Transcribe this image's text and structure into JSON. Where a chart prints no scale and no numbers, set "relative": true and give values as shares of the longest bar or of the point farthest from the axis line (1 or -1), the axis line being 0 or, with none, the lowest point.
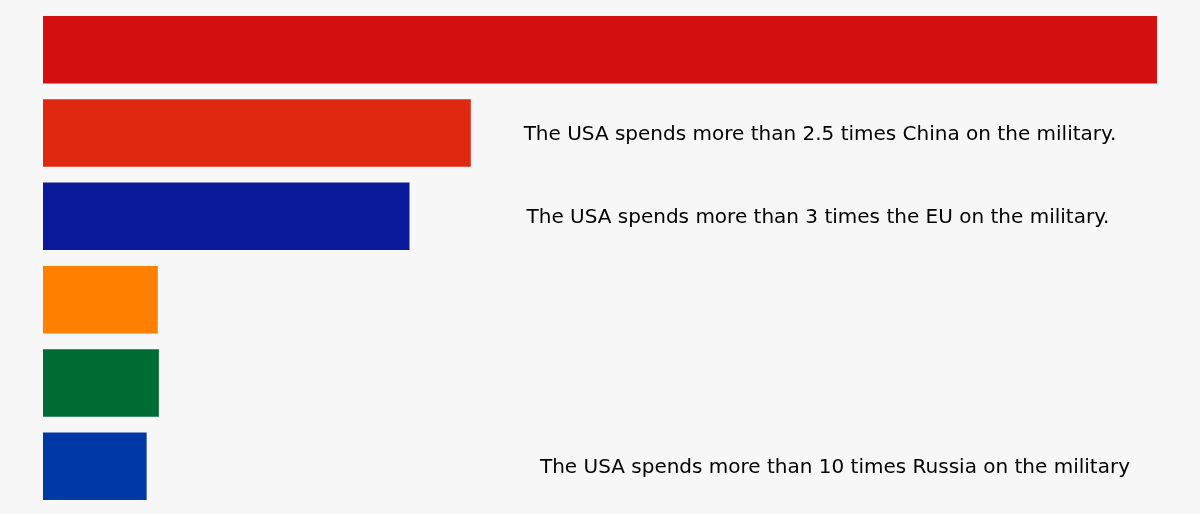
{
  "chart_data": {
    "type": "bar",
    "orientation": "horizontal",
    "relative": true,
    "categories": [
      null,
      null,
      null,
      null,
      null,
      null
    ],
    "values": [
      1,
      0.384,
      0.329,
      0.103,
      0.104,
      0.093
    ],
    "colors": [
      "#d40f0f",
      "#de2910",
      "#0a1a9a",
      "#ff7f00",
      "#006c35",
      "#0039a6"
    ],
    "annotations": [
      "The USA spends more than 2.5 times China on the military.",
      "The USA spends more than 3 times the EU on the military.",
      "The USA spends more than 10 times Russia on the military"
    ],
    "data_labels": false
  }
}
